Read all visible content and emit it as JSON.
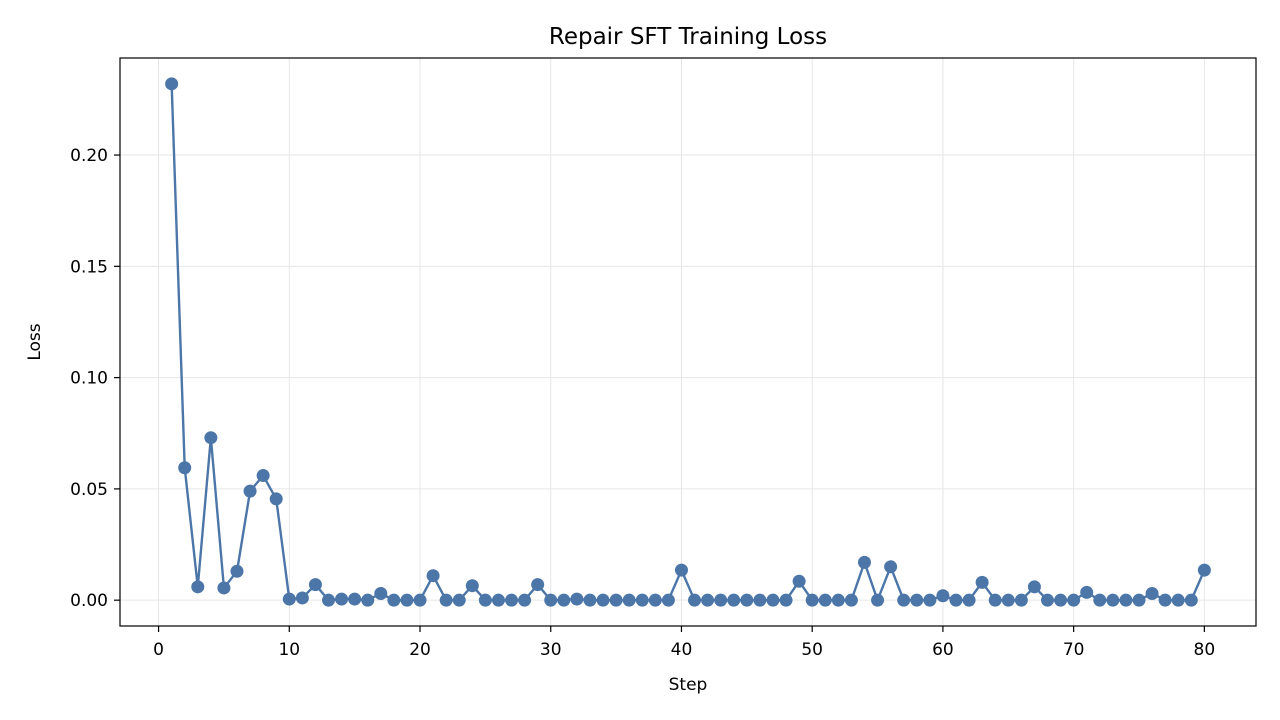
{
  "chart_data": {
    "type": "line",
    "title": "Repair SFT Training Loss",
    "xlabel": "Step",
    "ylabel": "Loss",
    "xlim": [
      -2.95,
      83.95
    ],
    "ylim": [
      -0.0116,
      0.2436
    ],
    "x_ticks": [
      0,
      10,
      20,
      30,
      40,
      50,
      60,
      70,
      80
    ],
    "y_ticks": [
      0.0,
      0.05,
      0.1,
      0.15,
      0.2
    ],
    "y_tick_labels": [
      "0.00",
      "0.05",
      "0.10",
      "0.15",
      "0.20"
    ],
    "grid": true,
    "legend": "none",
    "series": [
      {
        "color": "#4c76a8",
        "marker": "circle",
        "x": [
          1,
          2,
          3,
          4,
          5,
          6,
          7,
          8,
          9,
          10,
          11,
          12,
          13,
          14,
          15,
          16,
          17,
          18,
          19,
          20,
          21,
          22,
          23,
          24,
          25,
          26,
          27,
          28,
          29,
          30,
          31,
          32,
          33,
          34,
          35,
          36,
          37,
          38,
          39,
          40,
          41,
          42,
          43,
          44,
          45,
          46,
          47,
          48,
          49,
          50,
          51,
          52,
          53,
          54,
          55,
          56,
          57,
          58,
          59,
          60,
          61,
          62,
          63,
          64,
          65,
          66,
          67,
          68,
          69,
          70,
          71,
          72,
          73,
          74,
          75,
          76,
          77,
          78,
          79,
          80
        ],
        "y": [
          0.232,
          0.0595,
          0.006,
          0.073,
          0.0055,
          0.013,
          0.049,
          0.056,
          0.0455,
          0.0005,
          0.001,
          0.007,
          0.0,
          0.0005,
          0.0005,
          0.0,
          0.003,
          0.0,
          0.0,
          0.0,
          0.011,
          0.0,
          0.0,
          0.0065,
          0.0,
          0.0,
          0.0,
          0.0,
          0.007,
          0.0,
          0.0,
          0.0005,
          0.0,
          0.0,
          0.0,
          0.0,
          0.0,
          0.0,
          0.0,
          0.0135,
          0.0,
          0.0,
          0.0,
          0.0,
          0.0,
          0.0,
          0.0,
          0.0,
          0.0085,
          0.0,
          0.0,
          0.0,
          0.0,
          0.017,
          0.0,
          0.015,
          0.0,
          0.0,
          0.0,
          0.002,
          0.0,
          0.0,
          0.008,
          0.0,
          0.0,
          0.0,
          0.006,
          0.0,
          0.0,
          0.0,
          0.0035,
          0.0,
          0.0,
          0.0,
          0.0,
          0.003,
          0.0,
          0.0,
          0.0,
          0.0135
        ]
      }
    ]
  },
  "colors": {
    "line": "#4c76a8",
    "grid": "#e6e6e6",
    "axes": "#000000"
  }
}
